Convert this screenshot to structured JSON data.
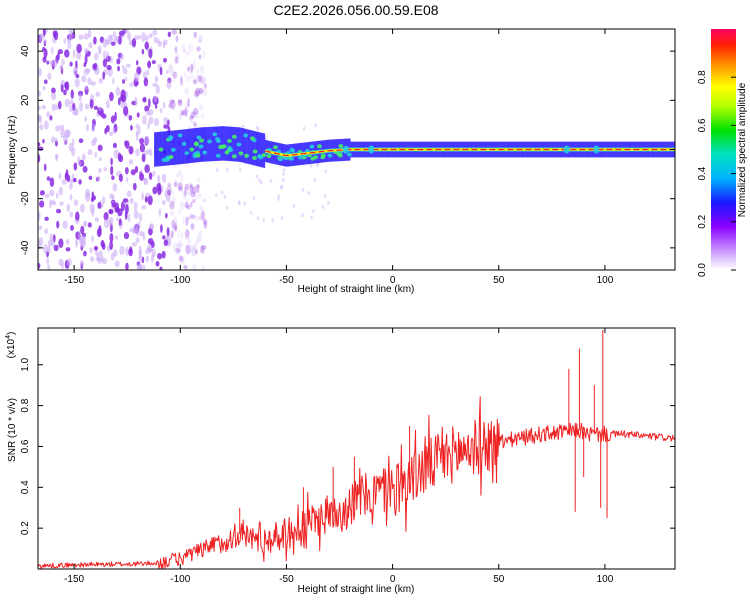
{
  "title": "C2E2.2026.056.00.59.E08",
  "colors": {
    "snr_line": "#ee2222",
    "spec_ridge": "#ee2222",
    "spec_halo": "#22ccdd",
    "spec_core": "#ffee00",
    "spec_noise": "#8a2be2",
    "spec_noise_light": "#c9a8f5"
  },
  "chart_data": [
    {
      "type": "heatmap",
      "xlabel": "Height of straight line (km)",
      "ylabel": "Frequency (Hz)",
      "xlim": [
        -167,
        133
      ],
      "ylim": [
        -49,
        49
      ],
      "x_ticks": [
        -150,
        -100,
        -50,
        0,
        50,
        100
      ],
      "x_tick_labels": [
        "-150",
        "-100",
        "-50",
        "0",
        "50",
        "100"
      ],
      "y_ticks": [
        -40,
        -20,
        0,
        20,
        40
      ],
      "y_tick_labels": [
        "-40",
        "-20",
        "0",
        "20",
        "40"
      ],
      "colorbar": {
        "label": "Normalized spectral amplitude",
        "range": [
          0,
          1
        ],
        "ticks": [
          0,
          0.2,
          0.4,
          0.6,
          0.8
        ],
        "tick_labels": [
          "0.0",
          "0.2",
          "0.4",
          "0.6",
          "0.8"
        ],
        "colormap": "rainbow"
      },
      "ridge": {
        "x": [
          -112,
          -100,
          -90,
          -80,
          -72,
          -65,
          -58,
          -50,
          -40,
          -30,
          -20,
          -10,
          0,
          50,
          100,
          133
        ],
        "y": [
          0,
          1,
          2,
          2.5,
          2,
          0.5,
          -1,
          -2.5,
          -1.5,
          -0.5,
          0,
          0,
          0,
          0,
          0,
          0
        ]
      },
      "noise_region_xlim": [
        -167,
        -100
      ]
    },
    {
      "type": "line",
      "xlabel": "Height of straight line (km)",
      "ylabel": "SNR (10 * v/v)",
      "y_exponent_label": "(x10",
      "y_exponent": "4",
      "y_exponent_close": ")",
      "xlim": [
        -167,
        133
      ],
      "ylim": [
        0,
        1.18
      ],
      "x_ticks": [
        -150,
        -100,
        -50,
        0,
        50,
        100
      ],
      "x_tick_labels": [
        "-150",
        "-100",
        "-50",
        "0",
        "50",
        "100"
      ],
      "y_ticks": [
        0.2,
        0.4,
        0.6,
        0.8,
        1.0
      ],
      "y_tick_labels": [
        "0.2",
        "0.4",
        "0.6",
        "0.8",
        "1.0"
      ],
      "envelope": {
        "x": [
          -167,
          -150,
          -120,
          -110,
          -100,
          -90,
          -80,
          -72,
          -65,
          -60,
          -50,
          -40,
          -30,
          -20,
          -10,
          0,
          10,
          20,
          30,
          40,
          50,
          60,
          70,
          80,
          88,
          92,
          100,
          110,
          120,
          133
        ],
        "y": [
          0.015,
          0.02,
          0.025,
          0.03,
          0.05,
          0.09,
          0.13,
          0.17,
          0.15,
          0.14,
          0.17,
          0.22,
          0.27,
          0.32,
          0.37,
          0.4,
          0.45,
          0.52,
          0.57,
          0.6,
          0.62,
          0.64,
          0.66,
          0.67,
          0.68,
          0.66,
          0.66,
          0.66,
          0.65,
          0.64
        ]
      },
      "spikes": [
        {
          "x": -72,
          "y": 0.3
        },
        {
          "x": -55,
          "y": 0.22
        },
        {
          "x": -42,
          "y": 0.4
        },
        {
          "x": -28,
          "y": 0.5
        },
        {
          "x": -18,
          "y": 0.55
        },
        {
          "x": 8,
          "y": 0.7
        },
        {
          "x": 83,
          "y": 0.98
        },
        {
          "x": 86,
          "y": 0.28
        },
        {
          "x": 88,
          "y": 1.08
        },
        {
          "x": 90,
          "y": 0.45
        },
        {
          "x": 95,
          "y": 0.9
        },
        {
          "x": 98,
          "y": 0.3
        },
        {
          "x": 99,
          "y": 1.17
        },
        {
          "x": 101,
          "y": 0.25
        }
      ]
    }
  ]
}
